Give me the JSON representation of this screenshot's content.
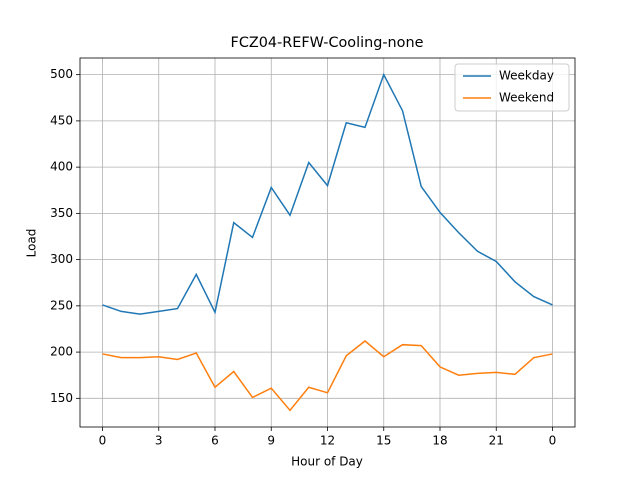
{
  "chart_data": {
    "type": "line",
    "title": "FCZ04-REFW-Cooling-none",
    "xlabel": "Hour of Day",
    "ylabel": "Load",
    "x": [
      0,
      1,
      2,
      3,
      4,
      5,
      6,
      7,
      8,
      9,
      10,
      11,
      12,
      13,
      14,
      15,
      16,
      17,
      18,
      19,
      20,
      21,
      22,
      23,
      24
    ],
    "series": [
      {
        "name": "Weekday",
        "color": "#1f77b4",
        "values": [
          251,
          244,
          241,
          244,
          247,
          284,
          243,
          340,
          324,
          378,
          348,
          405,
          380,
          448,
          443,
          500,
          461,
          379,
          351,
          329,
          309,
          298,
          276,
          260,
          251
        ]
      },
      {
        "name": "Weekend",
        "color": "#ff7f0e",
        "values": [
          198,
          194,
          194,
          195,
          192,
          199,
          162,
          179,
          151,
          161,
          137,
          162,
          156,
          196,
          212,
          195,
          208,
          207,
          184,
          175,
          177,
          178,
          176,
          194,
          198
        ]
      }
    ],
    "xlim": [
      -1.2,
      25.2
    ],
    "xticks": [
      0,
      3,
      6,
      9,
      12,
      15,
      18,
      21,
      {
        "value": 24,
        "label": "0"
      }
    ],
    "ylim": [
      119,
      518
    ],
    "yticks": [
      150,
      200,
      250,
      300,
      350,
      400,
      450,
      500
    ],
    "grid": true,
    "legend": "upper right"
  }
}
